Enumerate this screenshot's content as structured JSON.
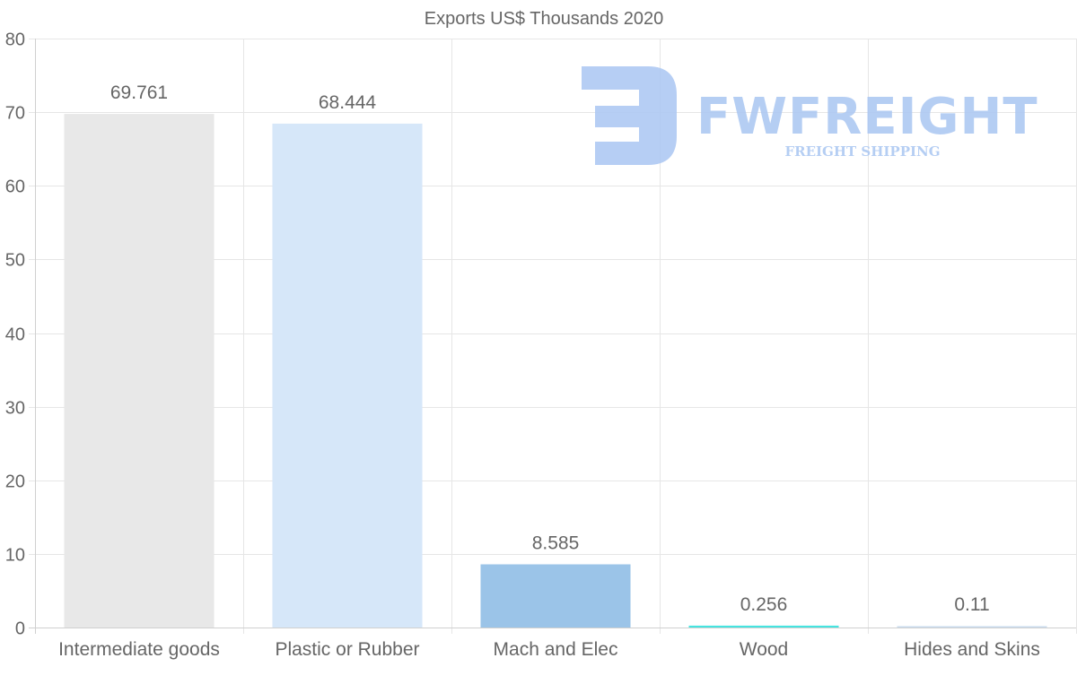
{
  "chart_data": {
    "type": "bar",
    "title": "Exports US$ Thousands 2020",
    "categories": [
      "Intermediate goods",
      "Plastic or Rubber",
      "Mach and Elec",
      "Wood",
      "Hides and Skins"
    ],
    "values": [
      69.761,
      68.444,
      8.585,
      0.256,
      0.11
    ],
    "data_labels": [
      "69.761",
      "68.444",
      "8.585",
      "0.256",
      "0.11"
    ],
    "bar_colors": [
      "#e8e8e8",
      "#d6e7f9",
      "#9bc4e8",
      "#46e4e0",
      "#c9dbee"
    ],
    "xlabel": "",
    "ylabel": "",
    "ylim": [
      0,
      80
    ],
    "yticks": [
      0,
      10,
      20,
      30,
      40,
      50,
      60,
      70,
      80
    ],
    "grid": true,
    "legend": "none"
  },
  "watermark": {
    "brand": "FWFREIGHT",
    "tagline": "FREIGHT SHIPPING",
    "color": "#a9c6f2"
  }
}
